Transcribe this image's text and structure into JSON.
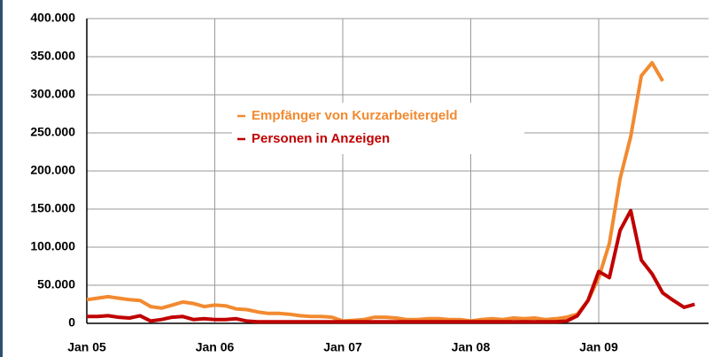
{
  "chart_data": {
    "type": "line",
    "x": [
      0,
      1,
      2,
      3,
      4,
      5,
      6,
      7,
      8,
      9,
      10,
      11,
      12,
      13,
      14,
      15,
      16,
      17,
      18,
      19,
      20,
      21,
      22,
      23,
      24,
      25,
      26,
      27,
      28,
      29,
      30,
      31,
      32,
      33,
      34,
      35,
      36,
      37,
      38,
      39,
      40,
      41,
      42,
      43,
      44,
      45,
      46,
      47,
      48,
      49,
      50,
      51,
      52,
      53,
      54,
      55,
      56,
      57
    ],
    "xlim": [
      0,
      58.3
    ],
    "xticks": [
      {
        "value": 0,
        "label": "Jan 05"
      },
      {
        "value": 12,
        "label": "Jan 06"
      },
      {
        "value": 24,
        "label": "Jan 07"
      },
      {
        "value": 36,
        "label": "Jan 08"
      },
      {
        "value": 48,
        "label": "Jan 09"
      }
    ],
    "ylim": [
      0,
      400000
    ],
    "yticks": [
      0,
      {
        "value": 50000,
        "label": "50.000"
      },
      {
        "value": 100000,
        "label": "100.000"
      },
      {
        "value": 150000,
        "label": "150.000"
      },
      {
        "value": 200000,
        "label": "200.000"
      },
      {
        "value": 250000,
        "label": "250.000"
      },
      {
        "value": 300000,
        "label": "300.000"
      },
      {
        "value": 350000,
        "label": "350.000"
      },
      {
        "value": 400000,
        "label": "400.000"
      }
    ],
    "grid": true,
    "legend": "upper center",
    "series": [
      {
        "name": "Empfänger von Kurzarbeitergeld",
        "color": "#f28a30",
        "values": [
          31000,
          33000,
          35000,
          33000,
          31000,
          30000,
          22000,
          20000,
          24000,
          28000,
          26000,
          22000,
          24000,
          23000,
          19000,
          18000,
          15000,
          13000,
          13000,
          12000,
          10000,
          9000,
          9000,
          8000,
          3000,
          4000,
          5000,
          8000,
          8000,
          7000,
          5000,
          5000,
          6000,
          6000,
          5000,
          5000,
          3000,
          5000,
          6000,
          5000,
          7000,
          6000,
          7000,
          5000,
          6000,
          8000,
          12000,
          30000,
          60000,
          105000,
          190000,
          245000,
          325000,
          342000,
          318000,
          null,
          null,
          null
        ]
      },
      {
        "name": "Personen in Anzeigen",
        "color": "#c00000",
        "values": [
          9000,
          9000,
          10000,
          8000,
          7000,
          10000,
          3000,
          5000,
          8000,
          9000,
          5000,
          6000,
          5000,
          5000,
          6000,
          3000,
          2000,
          2000,
          2000,
          2000,
          2000,
          2000,
          2000,
          2000,
          2000,
          2000,
          2000,
          2000,
          2000,
          2000,
          2000,
          2000,
          2000,
          2000,
          2000,
          2000,
          2000,
          2000,
          2000,
          2000,
          2000,
          2000,
          2000,
          2000,
          2000,
          3000,
          10000,
          30000,
          68000,
          60000,
          122000,
          148000,
          83000,
          65000,
          40000,
          30000,
          21000,
          25000
        ]
      }
    ]
  }
}
